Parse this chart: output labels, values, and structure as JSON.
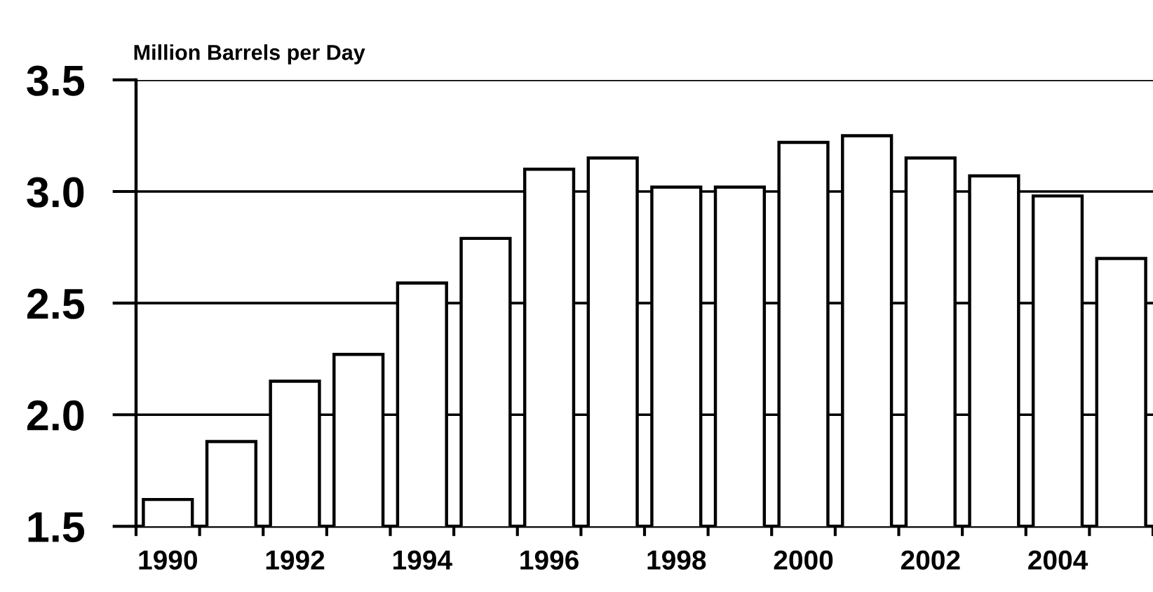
{
  "chart_data": {
    "type": "bar",
    "ylabel": "Million Barrels per Day",
    "categories": [
      "1990",
      null,
      "1992",
      null,
      "1994",
      null,
      "1996",
      null,
      "1998",
      null,
      "2000",
      null,
      "2002",
      null,
      "2004",
      null
    ],
    "values": [
      1.62,
      1.88,
      2.15,
      2.27,
      2.59,
      2.79,
      3.1,
      3.15,
      3.02,
      3.02,
      3.22,
      3.25,
      3.15,
      3.07,
      2.98,
      2.7
    ],
    "color": "#ffffff",
    "ylim": [
      1.5,
      3.5
    ],
    "yticks": [
      {
        "value": 1.5,
        "label": "1.5"
      },
      {
        "value": 2,
        "label": "2.0"
      },
      {
        "value": 2.5,
        "label": "2.5"
      },
      {
        "value": 3,
        "label": "3.0"
      },
      {
        "value": 3.5,
        "label": "3.5"
      }
    ],
    "grid": "y"
  }
}
